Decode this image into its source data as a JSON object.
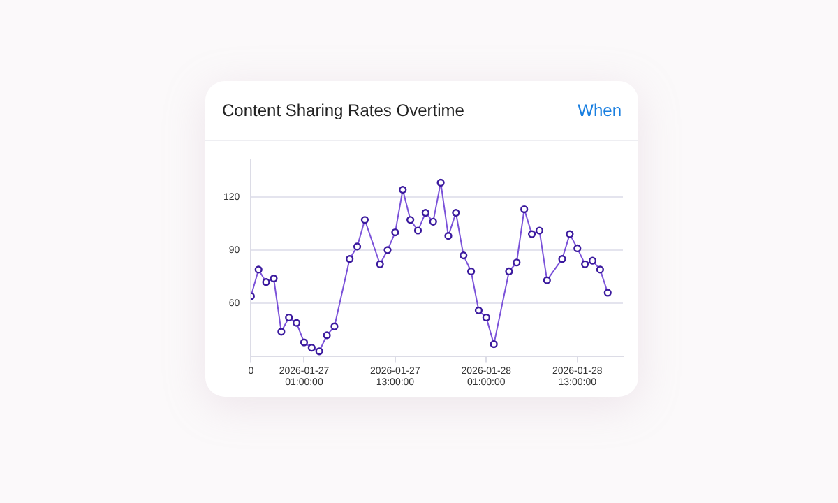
{
  "chart_data": {
    "type": "line",
    "title": "Content Sharing Rates Overtime",
    "annotations": [
      "When"
    ],
    "x": [
      "2026-01-26T18:00",
      "2026-01-26T19:00",
      "2026-01-26T20:00",
      "2026-01-26T21:00",
      "2026-01-26T22:00",
      "2026-01-26T23:00",
      "2026-01-27T00:00",
      "2026-01-27T01:00",
      "2026-01-27T02:00",
      "2026-01-27T03:00",
      "2026-01-27T04:00",
      "2026-01-27T05:00",
      "2026-01-27T07:00",
      "2026-01-27T08:00",
      "2026-01-27T09:00",
      "2026-01-27T11:00",
      "2026-01-27T12:00",
      "2026-01-27T13:00",
      "2026-01-27T14:00",
      "2026-01-27T15:00",
      "2026-01-27T16:00",
      "2026-01-27T17:00",
      "2026-01-27T18:00",
      "2026-01-27T19:00",
      "2026-01-27T20:00",
      "2026-01-27T21:00",
      "2026-01-27T22:00",
      "2026-01-27T23:00",
      "2026-01-28T00:00",
      "2026-01-28T01:00",
      "2026-01-28T02:00",
      "2026-01-28T04:00",
      "2026-01-28T05:00",
      "2026-01-28T06:00",
      "2026-01-28T07:00",
      "2026-01-28T08:00",
      "2026-01-28T09:00",
      "2026-01-28T11:00",
      "2026-01-28T12:00",
      "2026-01-28T13:00",
      "2026-01-28T14:00",
      "2026-01-28T15:00",
      "2026-01-28T16:00",
      "2026-01-28T17:00"
    ],
    "series": [
      {
        "color": "#7b52d9",
        "values": [
          64,
          79,
          72,
          74,
          44,
          52,
          49,
          38,
          35,
          33,
          42,
          47,
          85,
          92,
          107,
          82,
          90,
          100,
          124,
          107,
          101,
          111,
          106,
          128,
          98,
          111,
          87,
          78,
          56,
          52,
          37,
          78,
          83,
          113,
          99,
          101,
          73,
          85,
          99,
          91,
          82,
          84,
          79,
          66
        ]
      }
    ],
    "xlim": [
      "2026-01-26T18:00",
      "2026-01-28T19:00"
    ],
    "ylim": [
      30,
      141
    ],
    "xticks": [
      {
        "value": "2026-01-26T18:00",
        "label": "0"
      },
      {
        "value": "2026-01-27T01:00",
        "label": "2026-01-27 01:00:00"
      },
      {
        "value": "2026-01-27T13:00",
        "label": "2026-01-27 13:00:00"
      },
      {
        "value": "2026-01-28T01:00",
        "label": "2026-01-28 01:00:00"
      },
      {
        "value": "2026-01-28T13:00",
        "label": "2026-01-28 13:00:00"
      }
    ],
    "yticks": [
      60,
      90,
      120
    ],
    "grid": "y",
    "marker": "circle",
    "line_style": "solid"
  }
}
